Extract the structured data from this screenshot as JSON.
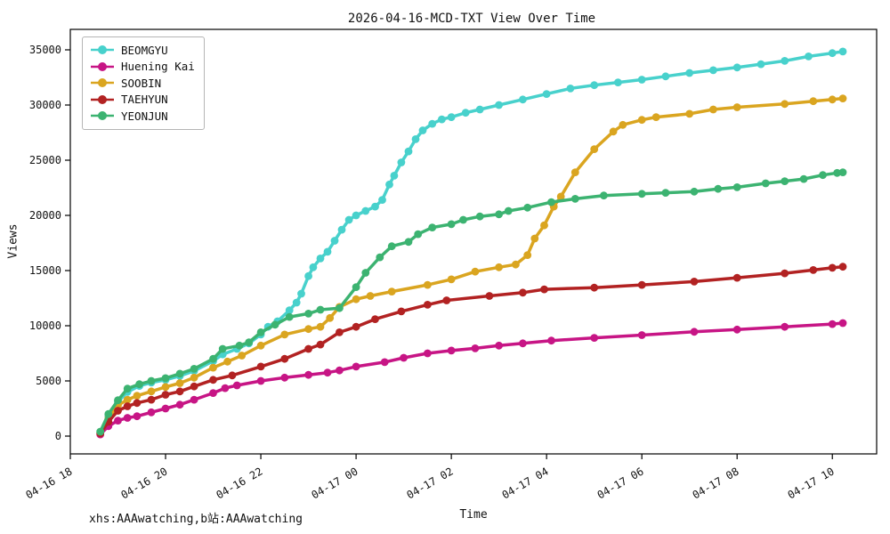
{
  "title": "2026-04-16-MCD-TXT View Over Time",
  "watermark": "xhs:AAAwatching,b站:AAAwatching",
  "chart_data": {
    "type": "line",
    "title": "2026-04-16-MCD-TXT View Over Time",
    "xlabel": "Time",
    "ylabel": "Views",
    "grid": false,
    "legend_position": "upper left",
    "x_unit": "hours after 2026-04-16 18:00",
    "xlim": [
      0,
      16.93
    ],
    "ylim": [
      -1613,
      36855
    ],
    "x_ticks": [
      {
        "t": 0,
        "label": "04-16 18"
      },
      {
        "t": 2,
        "label": "04-16 20"
      },
      {
        "t": 4,
        "label": "04-16 22"
      },
      {
        "t": 6,
        "label": "04-17 00"
      },
      {
        "t": 8,
        "label": "04-17 02"
      },
      {
        "t": 10,
        "label": "04-17 04"
      },
      {
        "t": 12,
        "label": "04-17 06"
      },
      {
        "t": 14,
        "label": "04-17 08"
      },
      {
        "t": 16,
        "label": "04-17 10"
      }
    ],
    "y_ticks": [
      0,
      5000,
      10000,
      15000,
      20000,
      25000,
      30000,
      35000
    ],
    "series": [
      {
        "name": "BEOMGYU",
        "color": "#48D1CC",
        "points": [
          [
            0.63,
            350
          ],
          [
            0.8,
            1800
          ],
          [
            1.0,
            3100
          ],
          [
            1.2,
            4000
          ],
          [
            1.45,
            4550
          ],
          [
            1.7,
            4850
          ],
          [
            2.0,
            5100
          ],
          [
            2.3,
            5450
          ],
          [
            2.6,
            5900
          ],
          [
            3.0,
            6800
          ],
          [
            3.2,
            7400
          ],
          [
            3.5,
            7900
          ],
          [
            3.75,
            8400
          ],
          [
            4.0,
            9200
          ],
          [
            4.15,
            9900
          ],
          [
            4.35,
            10400
          ],
          [
            4.6,
            11400
          ],
          [
            4.75,
            12100
          ],
          [
            4.85,
            12900
          ],
          [
            5.0,
            14500
          ],
          [
            5.1,
            15300
          ],
          [
            5.25,
            16100
          ],
          [
            5.4,
            16700
          ],
          [
            5.55,
            17700
          ],
          [
            5.7,
            18700
          ],
          [
            5.85,
            19600
          ],
          [
            6.0,
            20000
          ],
          [
            6.2,
            20400
          ],
          [
            6.4,
            20800
          ],
          [
            6.55,
            21400
          ],
          [
            6.7,
            22800
          ],
          [
            6.8,
            23600
          ],
          [
            6.95,
            24800
          ],
          [
            7.1,
            25800
          ],
          [
            7.25,
            26900
          ],
          [
            7.4,
            27700
          ],
          [
            7.6,
            28300
          ],
          [
            7.8,
            28700
          ],
          [
            8.0,
            28900
          ],
          [
            8.3,
            29300
          ],
          [
            8.6,
            29600
          ],
          [
            9.0,
            30000
          ],
          [
            9.5,
            30500
          ],
          [
            10.0,
            31000
          ],
          [
            10.5,
            31500
          ],
          [
            11.0,
            31800
          ],
          [
            11.5,
            32050
          ],
          [
            12.0,
            32300
          ],
          [
            12.5,
            32600
          ],
          [
            13.0,
            32900
          ],
          [
            13.5,
            33150
          ],
          [
            14.0,
            33400
          ],
          [
            14.5,
            33700
          ],
          [
            15.0,
            34000
          ],
          [
            15.5,
            34400
          ],
          [
            16.0,
            34700
          ],
          [
            16.22,
            34850
          ]
        ]
      },
      {
        "name": "Huening Kai",
        "color": "#C71585",
        "points": [
          [
            0.63,
            150
          ],
          [
            0.8,
            900
          ],
          [
            1.0,
            1400
          ],
          [
            1.2,
            1650
          ],
          [
            1.4,
            1800
          ],
          [
            1.7,
            2150
          ],
          [
            2.0,
            2500
          ],
          [
            2.3,
            2850
          ],
          [
            2.6,
            3300
          ],
          [
            3.0,
            3900
          ],
          [
            3.25,
            4350
          ],
          [
            3.5,
            4600
          ],
          [
            4.0,
            5000
          ],
          [
            4.5,
            5300
          ],
          [
            5.0,
            5550
          ],
          [
            5.4,
            5750
          ],
          [
            5.65,
            5950
          ],
          [
            6.0,
            6300
          ],
          [
            6.6,
            6700
          ],
          [
            7.0,
            7100
          ],
          [
            7.5,
            7500
          ],
          [
            8.0,
            7750
          ],
          [
            8.5,
            7950
          ],
          [
            9.0,
            8200
          ],
          [
            9.5,
            8400
          ],
          [
            10.1,
            8650
          ],
          [
            11.0,
            8900
          ],
          [
            12.0,
            9150
          ],
          [
            13.1,
            9450
          ],
          [
            14.0,
            9650
          ],
          [
            15.0,
            9900
          ],
          [
            16.0,
            10150
          ],
          [
            16.22,
            10240
          ]
        ]
      },
      {
        "name": "SOOBIN",
        "color": "#DAA520",
        "points": [
          [
            0.63,
            300
          ],
          [
            0.8,
            1600
          ],
          [
            1.0,
            2800
          ],
          [
            1.2,
            3300
          ],
          [
            1.4,
            3650
          ],
          [
            1.7,
            4050
          ],
          [
            2.0,
            4450
          ],
          [
            2.3,
            4800
          ],
          [
            2.6,
            5300
          ],
          [
            3.0,
            6200
          ],
          [
            3.3,
            6750
          ],
          [
            3.6,
            7300
          ],
          [
            4.0,
            8200
          ],
          [
            4.5,
            9200
          ],
          [
            5.0,
            9700
          ],
          [
            5.25,
            9900
          ],
          [
            5.45,
            10700
          ],
          [
            5.65,
            11700
          ],
          [
            6.0,
            12400
          ],
          [
            6.3,
            12700
          ],
          [
            6.75,
            13100
          ],
          [
            7.5,
            13700
          ],
          [
            8.0,
            14200
          ],
          [
            8.5,
            14900
          ],
          [
            9.0,
            15300
          ],
          [
            9.35,
            15550
          ],
          [
            9.6,
            16400
          ],
          [
            9.75,
            17900
          ],
          [
            9.95,
            19100
          ],
          [
            10.15,
            20800
          ],
          [
            10.3,
            21700
          ],
          [
            10.6,
            23900
          ],
          [
            11.0,
            26000
          ],
          [
            11.4,
            27600
          ],
          [
            11.6,
            28200
          ],
          [
            12.0,
            28650
          ],
          [
            12.3,
            28900
          ],
          [
            13.0,
            29200
          ],
          [
            13.5,
            29600
          ],
          [
            14.0,
            29800
          ],
          [
            15.0,
            30100
          ],
          [
            15.6,
            30350
          ],
          [
            16.0,
            30500
          ],
          [
            16.22,
            30600
          ]
        ]
      },
      {
        "name": "TAEHYUN",
        "color": "#B22222",
        "points": [
          [
            0.63,
            250
          ],
          [
            0.8,
            1300
          ],
          [
            1.0,
            2300
          ],
          [
            1.2,
            2700
          ],
          [
            1.4,
            3000
          ],
          [
            1.7,
            3300
          ],
          [
            2.0,
            3750
          ],
          [
            2.3,
            4050
          ],
          [
            2.6,
            4500
          ],
          [
            3.0,
            5100
          ],
          [
            3.4,
            5500
          ],
          [
            4.0,
            6300
          ],
          [
            4.5,
            7000
          ],
          [
            5.0,
            7900
          ],
          [
            5.25,
            8300
          ],
          [
            5.65,
            9400
          ],
          [
            6.0,
            9900
          ],
          [
            6.4,
            10600
          ],
          [
            6.95,
            11300
          ],
          [
            7.5,
            11900
          ],
          [
            7.9,
            12300
          ],
          [
            8.8,
            12700
          ],
          [
            9.5,
            13000
          ],
          [
            9.95,
            13300
          ],
          [
            11.0,
            13450
          ],
          [
            12.0,
            13700
          ],
          [
            13.1,
            14000
          ],
          [
            14.0,
            14350
          ],
          [
            15.0,
            14750
          ],
          [
            15.6,
            15050
          ],
          [
            16.0,
            15250
          ],
          [
            16.22,
            15350
          ]
        ]
      },
      {
        "name": "YEONJUN",
        "color": "#3CB371",
        "points": [
          [
            0.63,
            400
          ],
          [
            0.8,
            2000
          ],
          [
            1.0,
            3250
          ],
          [
            1.2,
            4300
          ],
          [
            1.45,
            4700
          ],
          [
            1.7,
            5000
          ],
          [
            2.0,
            5250
          ],
          [
            2.3,
            5650
          ],
          [
            2.6,
            6100
          ],
          [
            3.0,
            7000
          ],
          [
            3.2,
            7900
          ],
          [
            3.55,
            8200
          ],
          [
            3.75,
            8500
          ],
          [
            4.0,
            9400
          ],
          [
            4.3,
            10100
          ],
          [
            4.6,
            10800
          ],
          [
            5.0,
            11100
          ],
          [
            5.25,
            11450
          ],
          [
            5.65,
            11600
          ],
          [
            6.0,
            13500
          ],
          [
            6.2,
            14800
          ],
          [
            6.5,
            16200
          ],
          [
            6.75,
            17200
          ],
          [
            7.1,
            17600
          ],
          [
            7.3,
            18300
          ],
          [
            7.6,
            18900
          ],
          [
            8.0,
            19200
          ],
          [
            8.25,
            19600
          ],
          [
            8.6,
            19900
          ],
          [
            9.0,
            20100
          ],
          [
            9.2,
            20400
          ],
          [
            9.6,
            20700
          ],
          [
            10.1,
            21200
          ],
          [
            10.6,
            21500
          ],
          [
            11.2,
            21800
          ],
          [
            12.0,
            21950
          ],
          [
            12.5,
            22050
          ],
          [
            13.1,
            22150
          ],
          [
            13.6,
            22400
          ],
          [
            14.0,
            22550
          ],
          [
            14.6,
            22900
          ],
          [
            15.0,
            23100
          ],
          [
            15.4,
            23300
          ],
          [
            15.8,
            23650
          ],
          [
            16.1,
            23850
          ],
          [
            16.22,
            23900
          ]
        ]
      }
    ]
  }
}
